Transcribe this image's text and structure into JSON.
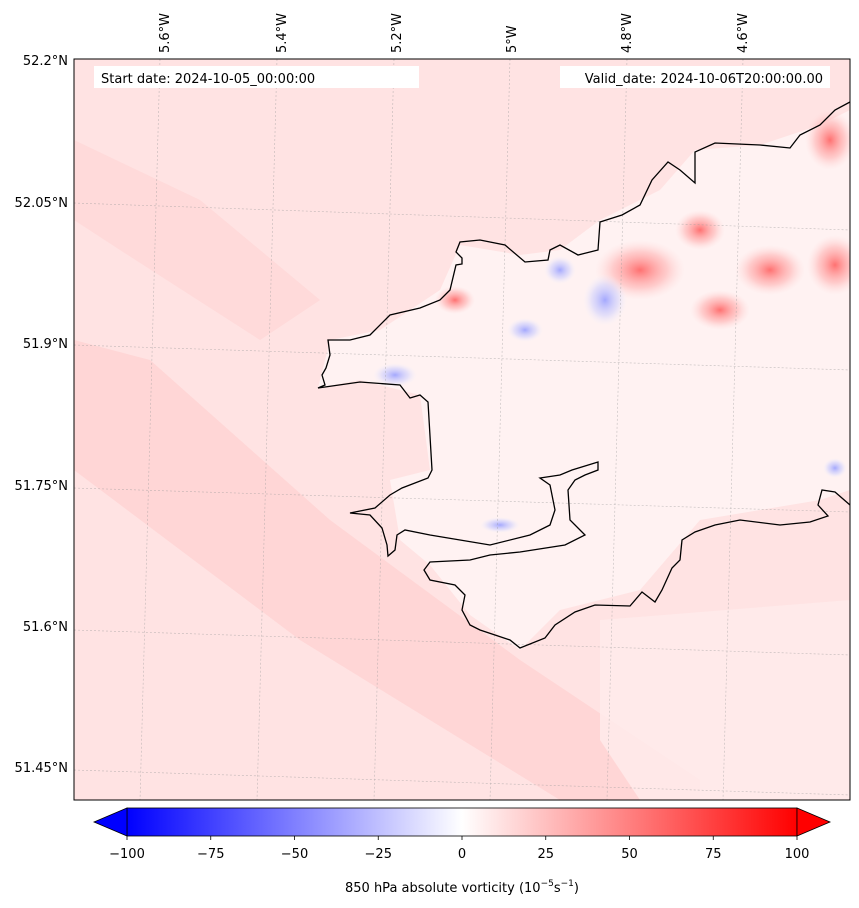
{
  "map": {
    "start_date_text": "Start date: 2024-10-05_00:00:00",
    "valid_date_text": "Valid_date: 2024-10-06T20:00:00.00",
    "lat_labels": [
      "52.2°N",
      "52.05°N",
      "51.9°N",
      "51.75°N",
      "51.6°N",
      "51.45°N"
    ],
    "lon_labels": [
      "5.6°W",
      "5.4°W",
      "5.2°W",
      "5°W",
      "4.8°W",
      "4.6°W"
    ],
    "coastline_color": "#000000",
    "field_color_low": "#0000ff",
    "field_color_mid": "#ffffff",
    "field_color_high": "#ff0000"
  },
  "colorbar": {
    "min": -100,
    "max": 100,
    "ticks": [
      "−100",
      "−75",
      "−50",
      "−25",
      "0",
      "25",
      "50",
      "75",
      "100"
    ],
    "label": "850 hPa absolute vorticity (10$^{-5}$s$^{-1}$)",
    "label_display": "850 hPa absolute vorticity (10",
    "label_exp1": "−5",
    "label_mid": "s",
    "label_exp2": "−1",
    "label_end": ")"
  }
}
